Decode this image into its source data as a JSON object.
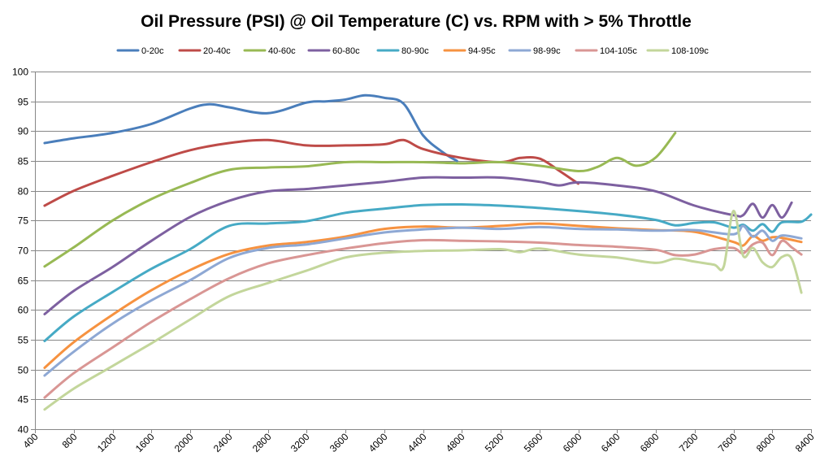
{
  "chart_data": {
    "type": "line",
    "title": "Oil Pressure (PSI) @ Oil Temperature (C) vs. RPM with > 5% Throttle",
    "xlabel": "",
    "ylabel": "",
    "xlim": [
      400,
      8400
    ],
    "ylim": [
      40,
      100
    ],
    "x_ticks": [
      "400",
      "800",
      "1200",
      "1600",
      "2000",
      "2400",
      "2800",
      "3200",
      "3600",
      "4000",
      "4400",
      "4800",
      "5200",
      "5600",
      "6000",
      "6400",
      "6800",
      "7200",
      "7600",
      "8000",
      "8400"
    ],
    "y_ticks": [
      "40",
      "45",
      "50",
      "55",
      "60",
      "65",
      "70",
      "75",
      "80",
      "85",
      "90",
      "95",
      "100"
    ],
    "grid": "horizontal",
    "legend_position": "top",
    "series": [
      {
        "name": "0-20c",
        "color": "#4A7EBB",
        "x": [
          500,
          800,
          1200,
          1600,
          2000,
          2200,
          2400,
          2800,
          3200,
          3400,
          3600,
          3800,
          4000,
          4200,
          4400,
          4600,
          4750
        ],
        "y": [
          88,
          88.8,
          89.7,
          91.2,
          93.8,
          94.5,
          94,
          93,
          94.8,
          95,
          95.3,
          96,
          95.6,
          94.6,
          89.3,
          86.5,
          85
        ]
      },
      {
        "name": "20-40c",
        "color": "#BE4B48",
        "x": [
          500,
          800,
          1200,
          1600,
          2000,
          2400,
          2800,
          3200,
          3600,
          4000,
          4200,
          4400,
          4800,
          5200,
          5400,
          5600,
          5800,
          6000
        ],
        "y": [
          77.5,
          80,
          82.5,
          84.8,
          86.8,
          88,
          88.5,
          87.6,
          87.6,
          87.8,
          88.5,
          87,
          85.5,
          84.8,
          85.5,
          85.4,
          83.4,
          81.2
        ]
      },
      {
        "name": "40-60c",
        "color": "#98B954",
        "x": [
          500,
          800,
          1200,
          1600,
          2000,
          2400,
          2800,
          3200,
          3600,
          4000,
          4400,
          4800,
          5200,
          5600,
          6000,
          6200,
          6400,
          6600,
          6800,
          7000
        ],
        "y": [
          67.3,
          70.5,
          75,
          78.6,
          81.3,
          83.5,
          83.9,
          84.1,
          84.8,
          84.8,
          84.8,
          84.6,
          84.8,
          84.2,
          83.3,
          84,
          85.5,
          84.2,
          85.6,
          89.7
        ]
      },
      {
        "name": "60-80c",
        "color": "#7D60A0",
        "x": [
          500,
          800,
          1200,
          1600,
          2000,
          2400,
          2800,
          3200,
          3600,
          4000,
          4400,
          4800,
          5200,
          5600,
          5800,
          6000,
          6400,
          6800,
          7200,
          7600,
          7700,
          7800,
          7900,
          8000,
          8100,
          8200
        ],
        "y": [
          59.3,
          63.2,
          67.2,
          71.6,
          75.6,
          78.3,
          79.9,
          80.3,
          80.9,
          81.5,
          82.2,
          82.2,
          82.2,
          81.5,
          80.9,
          81.4,
          80.9,
          79.9,
          77.5,
          75.9,
          75.9,
          77.8,
          75.5,
          77.6,
          75.5,
          78
        ]
      },
      {
        "name": "80-90c",
        "color": "#46AAC5",
        "x": [
          500,
          800,
          1200,
          1600,
          2000,
          2400,
          2800,
          3200,
          3600,
          4000,
          4400,
          4800,
          5200,
          5600,
          6000,
          6400,
          6800,
          7000,
          7200,
          7400,
          7600,
          7700,
          7800,
          7900,
          8000,
          8100,
          8300,
          8400
        ],
        "y": [
          54.8,
          58.9,
          63,
          66.9,
          70.2,
          74.1,
          74.5,
          74.9,
          76.3,
          77,
          77.6,
          77.7,
          77.5,
          77.1,
          76.6,
          76,
          75.1,
          74.2,
          74.6,
          74.7,
          73.8,
          74.3,
          73.3,
          74.4,
          73.1,
          74.7,
          74.8,
          76
        ]
      },
      {
        "name": "94-95c",
        "color": "#F69240",
        "x": [
          500,
          800,
          1200,
          1600,
          2000,
          2400,
          2800,
          3200,
          3600,
          4000,
          4400,
          4800,
          5200,
          5600,
          6000,
          6400,
          6800,
          7200,
          7600,
          7700,
          7800,
          7900,
          8000,
          8100,
          8300
        ],
        "y": [
          50.3,
          54.6,
          59.2,
          63.3,
          66.7,
          69.4,
          70.8,
          71.4,
          72.3,
          73.6,
          74,
          73.8,
          74.1,
          74.5,
          74.1,
          73.7,
          73.4,
          73.1,
          71.4,
          70.8,
          72.4,
          71.6,
          72.2,
          72.1,
          71.4
        ]
      },
      {
        "name": "98-99c",
        "color": "#8EA8D4",
        "x": [
          500,
          800,
          1200,
          1600,
          2000,
          2400,
          2800,
          3200,
          3600,
          4000,
          4400,
          4800,
          5200,
          5600,
          6000,
          6400,
          6800,
          7200,
          7600,
          7700,
          7800,
          7900,
          8000,
          8100,
          8300
        ],
        "y": [
          49,
          53,
          57.7,
          61.6,
          65,
          68.7,
          70.4,
          71,
          72,
          73,
          73.5,
          73.8,
          73.6,
          73.9,
          73.6,
          73.5,
          73.3,
          73.4,
          72.7,
          74.1,
          72.3,
          73.3,
          71.6,
          72.5,
          72
        ]
      },
      {
        "name": "104-105c",
        "color": "#D99694",
        "x": [
          500,
          800,
          1200,
          1600,
          2000,
          2400,
          2800,
          3200,
          3600,
          4000,
          4400,
          4800,
          5200,
          5600,
          6000,
          6400,
          6800,
          7000,
          7200,
          7400,
          7600,
          7700,
          7800,
          7900,
          8000,
          8100,
          8200,
          8300
        ],
        "y": [
          45.3,
          49.4,
          53.7,
          58,
          61.8,
          65.3,
          67.8,
          69.2,
          70.3,
          71.2,
          71.7,
          71.6,
          71.5,
          71.3,
          70.9,
          70.6,
          70.1,
          69.2,
          69.3,
          70.2,
          70.4,
          69.5,
          71,
          71.3,
          69.2,
          71.6,
          70.5,
          69.3
        ]
      },
      {
        "name": "108-109c",
        "color": "#C3D69B",
        "x": [
          500,
          800,
          1200,
          1600,
          2000,
          2400,
          2800,
          3200,
          3600,
          4000,
          4400,
          4800,
          5200,
          5400,
          5600,
          6000,
          6400,
          6800,
          7000,
          7200,
          7400,
          7500,
          7600,
          7700,
          7800,
          7900,
          8000,
          8100,
          8200,
          8300
        ],
        "y": [
          43.3,
          46.8,
          50.6,
          54.4,
          58.4,
          62.3,
          64.5,
          66.6,
          68.8,
          69.6,
          69.9,
          70,
          70.2,
          69.7,
          70.3,
          69.3,
          68.8,
          67.9,
          68.6,
          68.1,
          67.6,
          67.3,
          76.6,
          69.1,
          70.4,
          68,
          67.2,
          68.9,
          68.6,
          62.9
        ]
      }
    ]
  }
}
